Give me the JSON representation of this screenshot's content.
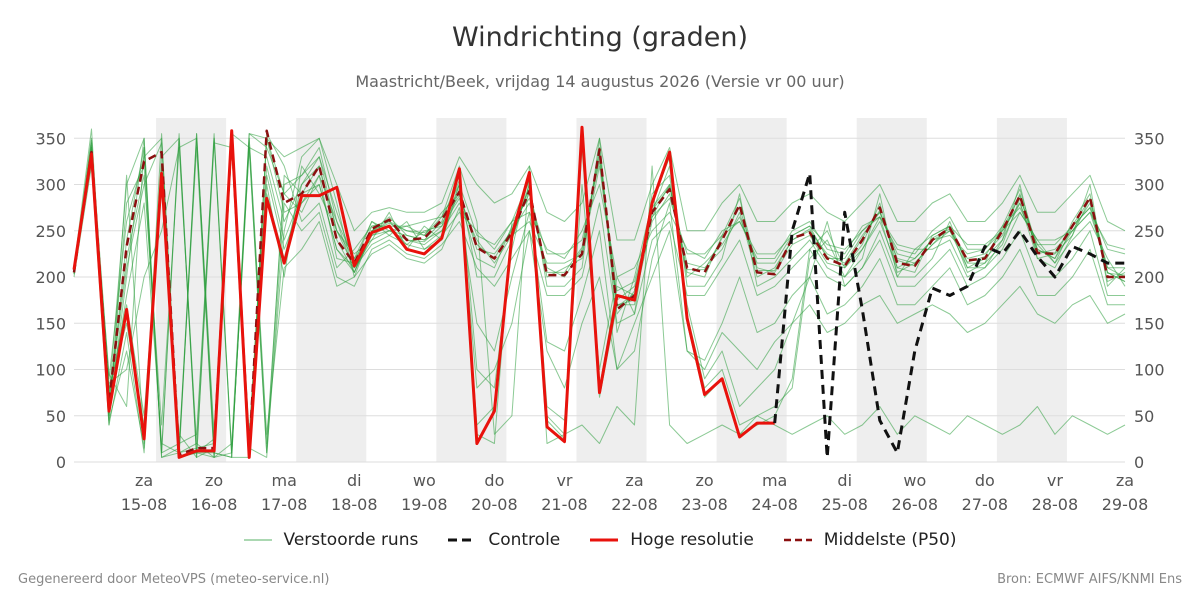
{
  "header": {
    "title": "Windrichting (graden)",
    "subtitle": "Maastricht/Beek, vrijdag 14 augustus 2026 (Versie vr 00 uur)"
  },
  "legend": {
    "ensemble": "Verstoorde runs",
    "control": "Controle",
    "hires": "Hoge resolutie",
    "median": "Middelste (P50)"
  },
  "footer": {
    "left": "Gegenereerd door MeteoVPS (meteo-service.nl)",
    "right": "Bron: ECMWF AIFS/KNMI Ens"
  },
  "colors": {
    "ensemble": "#2e9e3e",
    "control": "#111111",
    "hires": "#e8120c",
    "median": "#8b1010",
    "night_band": "#eeeeee",
    "grid": "#dddddd"
  },
  "chart_data": {
    "type": "line",
    "x_unit": "hours since 14-08 00:00",
    "xlim": [
      0,
      360
    ],
    "ylim": [
      0,
      360
    ],
    "yticks": [
      0,
      50,
      100,
      150,
      200,
      250,
      300,
      350
    ],
    "xticks": [
      {
        "x": 24,
        "day": "za",
        "date": "15-08"
      },
      {
        "x": 48,
        "day": "zo",
        "date": "16-08"
      },
      {
        "x": 72,
        "day": "ma",
        "date": "17-08"
      },
      {
        "x": 96,
        "day": "di",
        "date": "18-08"
      },
      {
        "x": 120,
        "day": "wo",
        "date": "19-08"
      },
      {
        "x": 144,
        "day": "do",
        "date": "20-08"
      },
      {
        "x": 168,
        "day": "vr",
        "date": "21-08"
      },
      {
        "x": 192,
        "day": "za",
        "date": "22-08"
      },
      {
        "x": 216,
        "day": "zo",
        "date": "23-08"
      },
      {
        "x": 240,
        "day": "ma",
        "date": "24-08"
      },
      {
        "x": 264,
        "day": "di",
        "date": "25-08"
      },
      {
        "x": 288,
        "day": "wo",
        "date": "26-08"
      },
      {
        "x": 312,
        "day": "do",
        "date": "27-08"
      },
      {
        "x": 336,
        "day": "vr",
        "date": "28-08"
      },
      {
        "x": 360,
        "day": "za",
        "date": "29-08"
      }
    ],
    "shaded_periods": [
      [
        24,
        48
      ],
      [
        72,
        96
      ],
      [
        120,
        144
      ],
      [
        168,
        192
      ],
      [
        216,
        240
      ],
      [
        264,
        288
      ],
      [
        312,
        336
      ]
    ],
    "grid": true,
    "legend_position": "bottom",
    "series": [
      {
        "name": "Hoge resolutie",
        "style": "solid",
        "x": [
          0,
          6,
          12,
          18,
          24,
          30,
          36,
          42,
          48,
          54,
          60,
          66,
          72,
          78,
          84,
          90,
          96,
          102,
          108,
          114,
          120,
          126,
          132,
          138,
          144,
          150,
          156,
          162,
          168,
          174,
          180,
          186,
          192,
          198,
          204,
          210,
          216,
          222,
          228,
          234,
          240
        ],
        "y": [
          208,
          333,
          55,
          165,
          25,
          312,
          5,
          12,
          12,
          358,
          5,
          285,
          215,
          288,
          288,
          297,
          212,
          248,
          255,
          230,
          225,
          242,
          317,
          20,
          55,
          245,
          313,
          38,
          22,
          362,
          75,
          180,
          175,
          280,
          335,
          155,
          73,
          90,
          27,
          42,
          42
        ]
      },
      {
        "name": "Middelste (P50)",
        "style": "dashed",
        "x": [
          0,
          6,
          12,
          18,
          24,
          30,
          36,
          42,
          48,
          54,
          60,
          66,
          72,
          78,
          84,
          90,
          96,
          102,
          108,
          114,
          120,
          126,
          132,
          138,
          144,
          150,
          156,
          162,
          168,
          174,
          180,
          186,
          192,
          198,
          204,
          210,
          216,
          222,
          228,
          234,
          240,
          246,
          252,
          258,
          264,
          270,
          276,
          282,
          288,
          294,
          300,
          306,
          312,
          318,
          324,
          330,
          336,
          342,
          348,
          354,
          360
        ],
        "y": [
          205,
          335,
          63,
          233,
          325,
          335,
          8,
          15,
          15,
          355,
          8,
          358,
          280,
          290,
          320,
          240,
          215,
          252,
          262,
          240,
          242,
          262,
          292,
          232,
          220,
          248,
          293,
          202,
          202,
          225,
          338,
          165,
          180,
          270,
          295,
          210,
          205,
          240,
          278,
          205,
          203,
          242,
          248,
          220,
          212,
          240,
          275,
          215,
          212,
          240,
          253,
          218,
          220,
          250,
          288,
          226,
          225,
          255,
          286,
          200,
          200
        ]
      },
      {
        "name": "Controle",
        "style": "dashed",
        "x": [
          240,
          246,
          252,
          258,
          264,
          270,
          276,
          282,
          288,
          294,
          300,
          306,
          312,
          318,
          324,
          330,
          336,
          342,
          348,
          354,
          360
        ],
        "y": [
          42,
          250,
          312,
          5,
          270,
          165,
          45,
          10,
          120,
          188,
          180,
          190,
          233,
          225,
          250,
          222,
          200,
          233,
          225,
          215,
          215
        ]
      }
    ],
    "ensemble_runs": [
      [
        205,
        340,
        80,
        150,
        40,
        300,
        10,
        15,
        20,
        350,
        10,
        290,
        220,
        300,
        330,
        250,
        210,
        240,
        250,
        240,
        235,
        250,
        300,
        40,
        60,
        240,
        300,
        50,
        30,
        340,
        80,
        190,
        180,
        270,
        320,
        160,
        80,
        100,
        40,
        50,
        60,
        80,
        220,
        240,
        200,
        230,
        260,
        210,
        220,
        240,
        250,
        210,
        220,
        240,
        280,
        230,
        220,
        250,
        270,
        210,
        200
      ],
      [
        210,
        360,
        50,
        200,
        350,
        10,
        355,
        10,
        5,
        355,
        15,
        350,
        270,
        280,
        300,
        230,
        205,
        255,
        260,
        250,
        245,
        270,
        290,
        230,
        225,
        250,
        280,
        210,
        200,
        230,
        330,
        170,
        175,
        260,
        290,
        215,
        210,
        230,
        270,
        200,
        210,
        240,
        250,
        225,
        215,
        245,
        270,
        220,
        215,
        235,
        250,
        220,
        225,
        245,
        290,
        225,
        230,
        250,
        280,
        205,
        195
      ],
      [
        200,
        320,
        40,
        310,
        20,
        355,
        5,
        355,
        10,
        5,
        350,
        20,
        300,
        310,
        340,
        260,
        220,
        245,
        255,
        235,
        250,
        255,
        285,
        220,
        210,
        255,
        290,
        200,
        210,
        220,
        340,
        160,
        185,
        275,
        300,
        205,
        200,
        245,
        285,
        210,
        205,
        235,
        245,
        215,
        210,
        235,
        280,
        210,
        205,
        245,
        255,
        215,
        215,
        255,
        295,
        230,
        220,
        260,
        290,
        195,
        205
      ],
      [
        208,
        330,
        70,
        220,
        310,
        40,
        340,
        20,
        355,
        10,
        340,
        10,
        250,
        330,
        350,
        280,
        200,
        250,
        265,
        245,
        240,
        260,
        310,
        100,
        80,
        230,
        310,
        60,
        45,
        300,
        100,
        200,
        160,
        290,
        310,
        170,
        90,
        120,
        60,
        80,
        100,
        150,
        200,
        260,
        190,
        210,
        250,
        200,
        230,
        230,
        240,
        200,
        210,
        230,
        270,
        240,
        215,
        240,
        260,
        220,
        190
      ],
      [
        203,
        345,
        90,
        260,
        330,
        350,
        15,
        340,
        5,
        20,
        355,
        340,
        290,
        270,
        310,
        220,
        215,
        260,
        245,
        260,
        230,
        245,
        270,
        250,
        230,
        260,
        270,
        230,
        220,
        250,
        300,
        200,
        210,
        250,
        270,
        230,
        220,
        250,
        260,
        220,
        220,
        250,
        260,
        230,
        225,
        255,
        265,
        230,
        225,
        250,
        265,
        230,
        230,
        255,
        275,
        235,
        235,
        255,
        275,
        230,
        225
      ],
      [
        206,
        325,
        45,
        120,
        15,
        330,
        350,
        5,
        345,
        340,
        20,
        300,
        200,
        320,
        290,
        250,
        225,
        240,
        270,
        230,
        255,
        240,
        300,
        200,
        200,
        240,
        300,
        190,
        190,
        210,
        350,
        140,
        200,
        280,
        330,
        190,
        190,
        220,
        290,
        190,
        200,
        220,
        240,
        210,
        200,
        220,
        290,
        200,
        200,
        220,
        260,
        210,
        210,
        240,
        300,
        220,
        210,
        245,
        300,
        190,
        210
      ],
      [
        207,
        350,
        60,
        180,
        280,
        20,
        10,
        350,
        30,
        345,
        5,
        355,
        320,
        260,
        280,
        210,
        230,
        255,
        255,
        255,
        260,
        265,
        320,
        260,
        30,
        50,
        320,
        20,
        30,
        40,
        20,
        60,
        40,
        320,
        40,
        20,
        30,
        40,
        30,
        50,
        40,
        30,
        40,
        50,
        30,
        40,
        60,
        30,
        50,
        40,
        30,
        50,
        40,
        30,
        40,
        60,
        30,
        50,
        40,
        30,
        40
      ],
      [
        204,
        335,
        55,
        240,
        340,
        10,
        20,
        30,
        350,
        10,
        340,
        330,
        260,
        300,
        320,
        240,
        205,
        245,
        250,
        245,
        240,
        250,
        280,
        240,
        215,
        245,
        260,
        215,
        215,
        225,
        320,
        175,
        190,
        265,
        300,
        200,
        215,
        235,
        265,
        215,
        215,
        245,
        255,
        220,
        220,
        250,
        270,
        225,
        220,
        240,
        245,
        225,
        230,
        250,
        280,
        220,
        225,
        245,
        285,
        210,
        210
      ],
      [
        209,
        338,
        75,
        170,
        50,
        300,
        30,
        5,
        15,
        350,
        30,
        320,
        240,
        290,
        300,
        230,
        210,
        235,
        245,
        235,
        230,
        240,
        295,
        80,
        100,
        150,
        250,
        120,
        80,
        150,
        200,
        100,
        150,
        200,
        250,
        120,
        100,
        140,
        120,
        100,
        130,
        150,
        170,
        140,
        150,
        170,
        180,
        150,
        160,
        170,
        160,
        140,
        150,
        170,
        190,
        160,
        150,
        170,
        180,
        150,
        160
      ],
      [
        205,
        342,
        65,
        210,
        300,
        345,
        5,
        10,
        10,
        5,
        355,
        350,
        290,
        310,
        330,
        270,
        215,
        250,
        258,
        250,
        248,
        258,
        288,
        235,
        220,
        252,
        295,
        205,
        205,
        232,
        335,
        168,
        182,
        272,
        298,
        208,
        208,
        242,
        276,
        207,
        207,
        240,
        252,
        222,
        212,
        242,
        272,
        218,
        212,
        242,
        252,
        216,
        222,
        252,
        288,
        228,
        226,
        256,
        284,
        204,
        202
      ],
      [
        210,
        330,
        85,
        100,
        200,
        250,
        340,
        350,
        5,
        350,
        15,
        5,
        280,
        250,
        270,
        200,
        190,
        230,
        240,
        225,
        220,
        235,
        260,
        210,
        190,
        220,
        250,
        180,
        180,
        200,
        280,
        150,
        160,
        240,
        260,
        180,
        180,
        210,
        240,
        180,
        190,
        210,
        230,
        200,
        190,
        210,
        240,
        190,
        190,
        210,
        230,
        190,
        200,
        220,
        250,
        200,
        200,
        220,
        250,
        180,
        180
      ],
      [
        206,
        348,
        50,
        280,
        320,
        10,
        350,
        5,
        350,
        5,
        5,
        350,
        330,
        340,
        350,
        300,
        250,
        270,
        275,
        270,
        270,
        280,
        330,
        300,
        280,
        290,
        320,
        270,
        260,
        280,
        350,
        240,
        240,
        300,
        340,
        250,
        250,
        280,
        300,
        260,
        260,
        280,
        290,
        270,
        260,
        280,
        300,
        260,
        260,
        280,
        290,
        260,
        260,
        280,
        310,
        270,
        270,
        290,
        310,
        260,
        250
      ],
      [
        203,
        328,
        95,
        60,
        340,
        5,
        10,
        20,
        5,
        10,
        350,
        30,
        210,
        230,
        260,
        190,
        200,
        225,
        235,
        220,
        215,
        230,
        275,
        150,
        120,
        200,
        270,
        130,
        120,
        180,
        250,
        100,
        120,
        220,
        280,
        120,
        110,
        150,
        200,
        140,
        150,
        180,
        200,
        160,
        170,
        190,
        220,
        170,
        170,
        190,
        210,
        170,
        180,
        200,
        230,
        180,
        180,
        200,
        230,
        170,
        170
      ],
      [
        208,
        340,
        40,
        140,
        10,
        320,
        5,
        10,
        25,
        340,
        25,
        310,
        230,
        280,
        310,
        260,
        205,
        250,
        260,
        240,
        238,
        255,
        305,
        30,
        20,
        260,
        305,
        45,
        25,
        350,
        70,
        170,
        170,
        280,
        330,
        150,
        70,
        90,
        30,
        40,
        50,
        90,
        230,
        250,
        210,
        230,
        265,
        205,
        215,
        235,
        255,
        205,
        215,
        235,
        285,
        235,
        215,
        255,
        275,
        205,
        195
      ],
      [
        205,
        336,
        70,
        300,
        350,
        5,
        15,
        355,
        20,
        355,
        340,
        10,
        310,
        290,
        320,
        250,
        220,
        260,
        250,
        255,
        245,
        265,
        300,
        245,
        235,
        260,
        285,
        225,
        225,
        240,
        325,
        185,
        195,
        265,
        285,
        225,
        225,
        245,
        260,
        225,
        225,
        245,
        255,
        235,
        230,
        250,
        265,
        235,
        230,
        245,
        255,
        235,
        235,
        250,
        270,
        240,
        240,
        250,
        270,
        235,
        230
      ]
    ]
  }
}
